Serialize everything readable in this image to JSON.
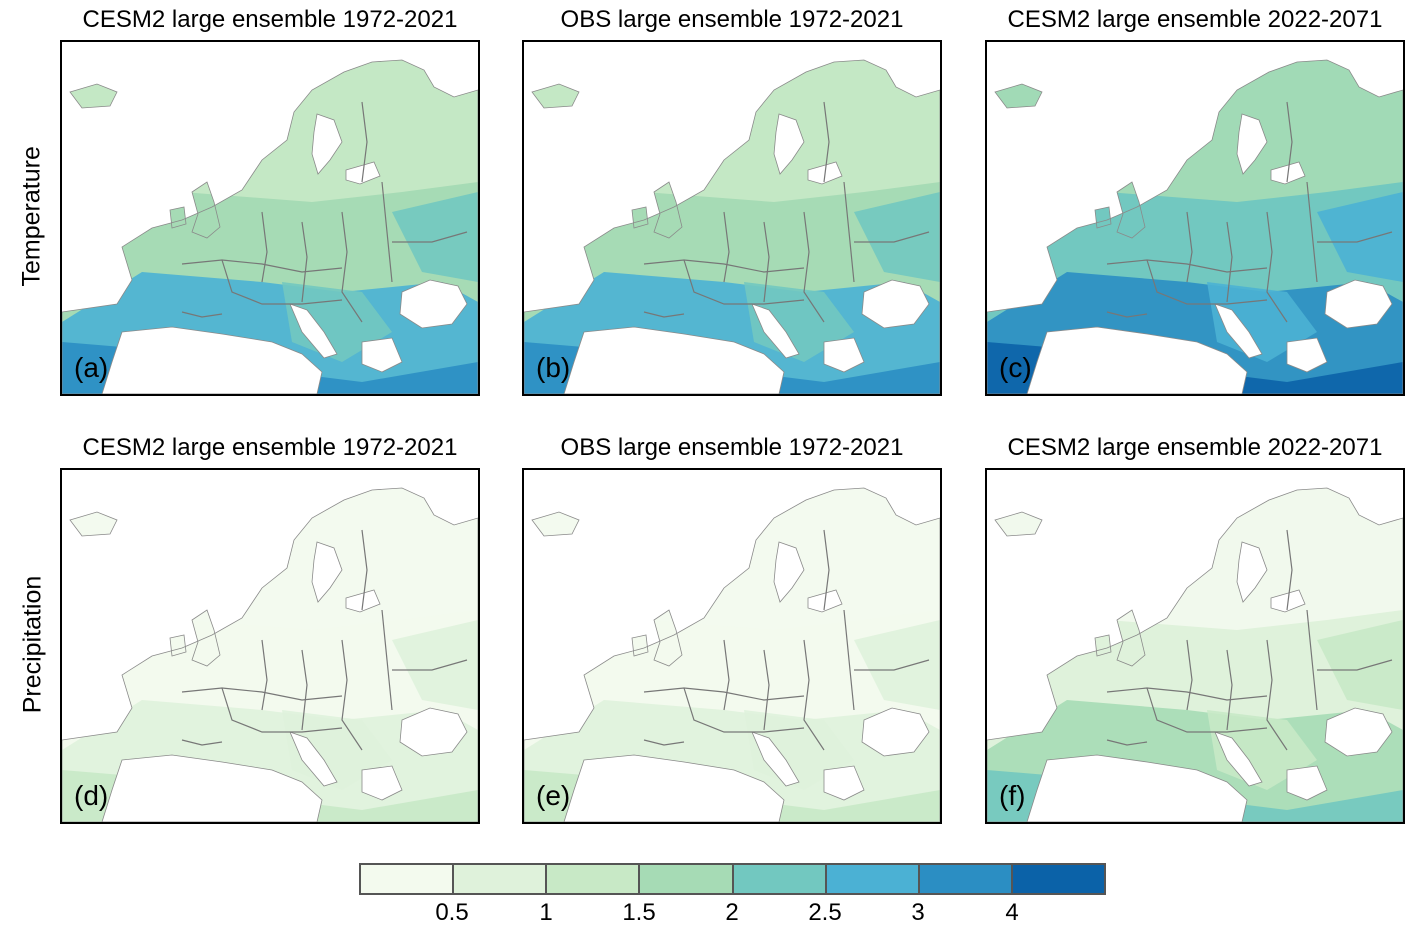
{
  "row_labels": [
    "Temperature",
    "Precipitation"
  ],
  "panels": [
    {
      "title": "CESM2 large ensemble 1972-2021",
      "letter": "(a)",
      "variable": "temperature",
      "intensity": "medium"
    },
    {
      "title": "OBS large ensemble 1972-2021",
      "letter": "(b)",
      "variable": "temperature",
      "intensity": "medium"
    },
    {
      "title": "CESM2 large ensemble 2022-2071",
      "letter": "(c)",
      "variable": "temperature",
      "intensity": "high"
    },
    {
      "title": "CESM2 large ensemble 1972-2021",
      "letter": "(d)",
      "variable": "precipitation",
      "intensity": "low"
    },
    {
      "title": "OBS large ensemble 1972-2021",
      "letter": "(e)",
      "variable": "precipitation",
      "intensity": "low"
    },
    {
      "title": "CESM2 large ensemble 2022-2071",
      "letter": "(f)",
      "variable": "precipitation",
      "intensity": "medium-low"
    }
  ],
  "colorbar": {
    "colors": [
      "#f3faee",
      "#dff2db",
      "#c8e9c6",
      "#a6dbb5",
      "#72c8c0",
      "#4bb1d4",
      "#2b8ec3",
      "#0b62a8"
    ],
    "ticks": [
      "0.5",
      "1",
      "1.5",
      "2",
      "2.5",
      "3",
      "4"
    ]
  }
}
